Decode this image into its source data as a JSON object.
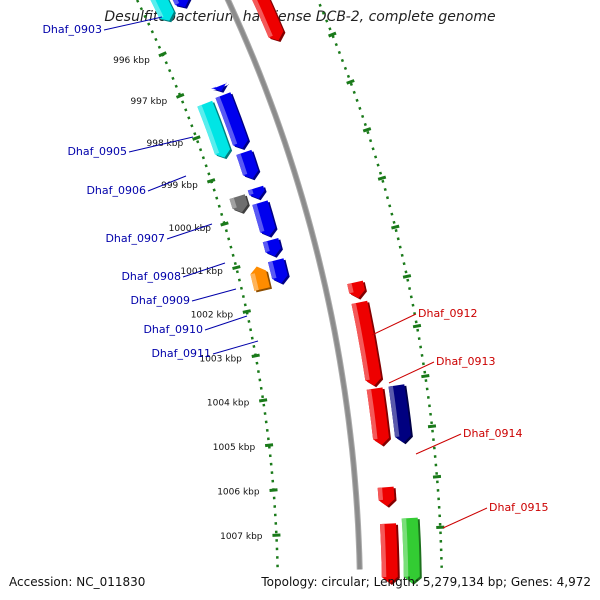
{
  "title": "Desulfitobacterium hafniense DCB-2, complete genome",
  "footer": {
    "accession": "Accession: NC_011830",
    "summary": "Topology: circular; Length: 5,279,134 bp; Genes: 4,972"
  },
  "colors": {
    "backbone": "#8c8c8c",
    "ticks": "#1a7a1a",
    "forward_label": "#0000aa",
    "reverse_label": "#cc0000"
  },
  "ticks": [
    "996 kbp",
    "997 kbp",
    "998 kbp",
    "999 kbp",
    "1000 kbp",
    "1001 kbp",
    "1002 kbp",
    "1003 kbp",
    "1004 kbp",
    "1005 kbp",
    "1006 kbp",
    "1007 kbp"
  ],
  "genes": [
    {
      "label": "Dhaf_0903",
      "strand": "forward",
      "color": "#00e5e5"
    },
    {
      "label": "Dhaf_0905",
      "strand": "forward",
      "color": "#00e5e5"
    },
    {
      "label": "Dhaf_0906",
      "strand": "forward",
      "color": "#0000ee"
    },
    {
      "label": "Dhaf_0907",
      "strand": "forward",
      "color": "#0000ee"
    },
    {
      "label": "Dhaf_0908",
      "strand": "forward",
      "color": "#6e6e6e"
    },
    {
      "label": "Dhaf_0909",
      "strand": "forward",
      "color": "#0000ee"
    },
    {
      "label": "Dhaf_0910",
      "strand": "forward",
      "color": "#0000ee"
    },
    {
      "label": "Dhaf_0911",
      "strand": "forward",
      "color": "#ff8c00"
    },
    {
      "label": "Dhaf_0912",
      "strand": "reverse",
      "color": "#ee0000"
    },
    {
      "label": "Dhaf_0913",
      "strand": "reverse",
      "color": "#ee0000"
    },
    {
      "label": "Dhaf_0914",
      "strand": "reverse",
      "color": "#000080"
    },
    {
      "label": "Dhaf_0915",
      "strand": "reverse",
      "color": "#ee0000"
    }
  ],
  "unlabeled_feature_colors": [
    "#0000ee",
    "#ee0000",
    "#ee0000",
    "#ee0000",
    "#0000ee",
    "#0000ee",
    "#ee0000",
    "#33cc33"
  ]
}
